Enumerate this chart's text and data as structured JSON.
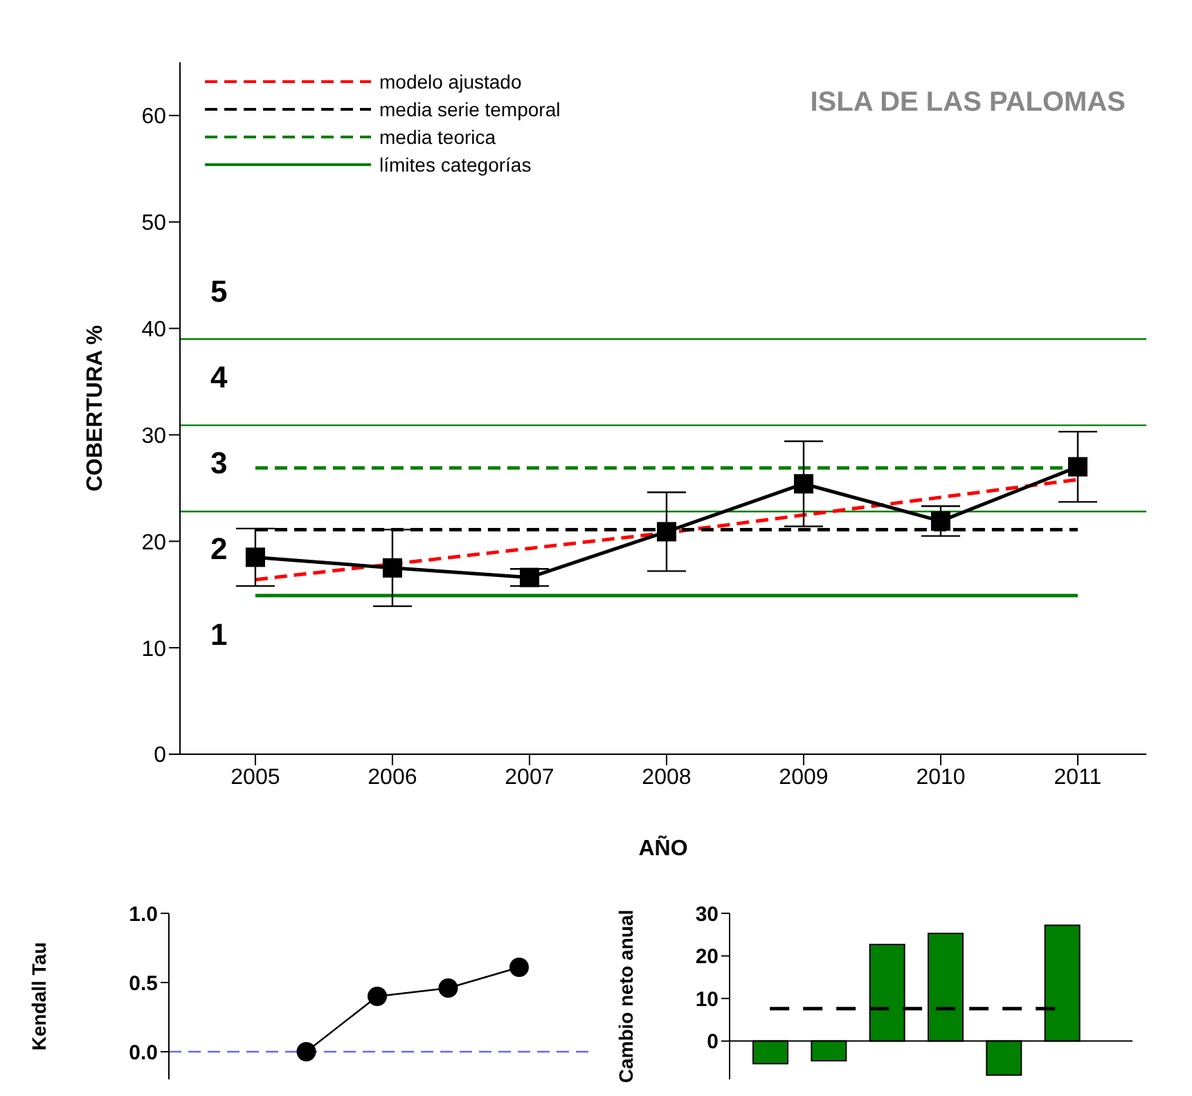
{
  "chart_data": [
    {
      "type": "line",
      "title": "ISLA DE LAS PALOMAS",
      "xlabel": "AÑO",
      "ylabel": "COBERTURA %",
      "x": [
        2005,
        2006,
        2007,
        2008,
        2009,
        2010,
        2011
      ],
      "xlim": [
        2004.45,
        2011.5
      ],
      "xticks": [
        2005,
        2006,
        2007,
        2008,
        2009,
        2010,
        2011
      ],
      "ylim": [
        0,
        65
      ],
      "yticks": [
        0,
        10,
        20,
        30,
        40,
        50,
        60
      ],
      "grid": false,
      "legend": "top left",
      "marker": "square",
      "line_style": "solid",
      "series": [
        {
          "color": "#000000",
          "values": [
            18.5,
            17.5,
            16.6,
            20.9,
            25.4,
            21.9,
            27.0
          ],
          "errors": [
            2.7,
            3.6,
            0.8,
            3.7,
            4.0,
            1.4,
            3.3
          ]
        },
        {
          "name": "modelo ajustado",
          "color": "#ff0000",
          "line_style": "dashed",
          "marker": "none",
          "x": [
            2005,
            2008,
            2011
          ],
          "values": [
            16.4,
            20.8,
            25.8
          ]
        },
        {
          "name": "media serie temporal",
          "color": "#000000",
          "line_style": "dashed",
          "marker": "none",
          "x": [
            2005,
            2011
          ],
          "values": [
            21.1,
            21.1
          ]
        },
        {
          "name": "media teorica",
          "color": "#008000",
          "line_style": "dashed",
          "marker": "none",
          "x": [
            2005,
            2011
          ],
          "values": [
            26.9,
            26.9
          ]
        },
        {
          "name": "límites categorías",
          "color": "#008000",
          "line_style": "solid",
          "marker": "none",
          "x": [
            2005,
            2011
          ],
          "values": [
            14.9,
            14.9
          ]
        }
      ],
      "ref_lines": [
        {
          "axis": "y",
          "value": 22.8,
          "color": "#008000"
        },
        {
          "axis": "y",
          "value": 30.9,
          "color": "#008000"
        },
        {
          "axis": "y",
          "value": 39.0,
          "color": "#008000"
        }
      ],
      "annotations": [
        "1",
        "2",
        "3",
        "4",
        "5"
      ]
    },
    {
      "type": "line",
      "ylabel": "Kendall Tau",
      "categories": [
        null,
        null,
        null,
        null,
        null
      ],
      "values": [
        null,
        0.0,
        0.4,
        0.46,
        0.61
      ],
      "color": "#000000",
      "ylim": [
        -0.2,
        1.0
      ],
      "yticks": [
        {
          "value": 0,
          "label": "0.0"
        },
        {
          "value": 0.5,
          "label": "0.5"
        },
        {
          "value": 1,
          "label": "1.0"
        }
      ],
      "tick_labels": "y",
      "marker": "circle",
      "ref_lines": [
        {
          "axis": "y",
          "value": 0,
          "color": "#6666ff",
          "line_style": "dashed"
        }
      ]
    },
    {
      "type": "bar",
      "ylabel": "Cambio neto anual",
      "categories": [
        null,
        null,
        null,
        null,
        null,
        null
      ],
      "values": [
        -5.3,
        -4.6,
        22.7,
        25.3,
        -8,
        27.2
      ],
      "color": "#008000",
      "ylim": [
        -9,
        30
      ],
      "yticks": [
        0,
        10,
        20,
        30
      ],
      "tick_labels": "y",
      "ref_lines": [
        {
          "axis": "y",
          "value": 7.6,
          "color": "#000000",
          "line_style": "dashed"
        }
      ]
    }
  ]
}
